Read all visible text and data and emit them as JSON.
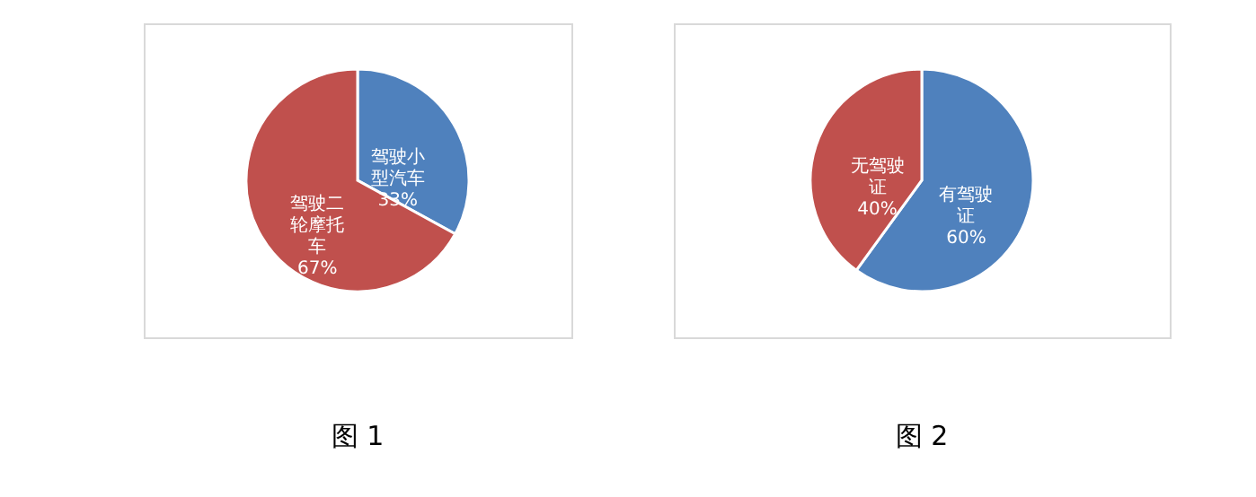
{
  "chart_data": [
    {
      "type": "pie",
      "categories": [
        "驾驶小型汽车",
        "驾驶二轮摩托车"
      ],
      "values": [
        33,
        67
      ],
      "colors": [
        "#4f81bd",
        "#c0504d"
      ],
      "value_labels": [
        "33%",
        "67%"
      ],
      "legend": false,
      "annotations": [
        "图 1"
      ]
    },
    {
      "type": "pie",
      "categories": [
        "有驾驶证",
        "无驾驶证"
      ],
      "values": [
        60,
        40
      ],
      "colors": [
        "#4f81bd",
        "#c0504d"
      ],
      "value_labels": [
        "60%",
        "40%"
      ],
      "legend": false,
      "annotations": [
        "图 2"
      ]
    }
  ]
}
